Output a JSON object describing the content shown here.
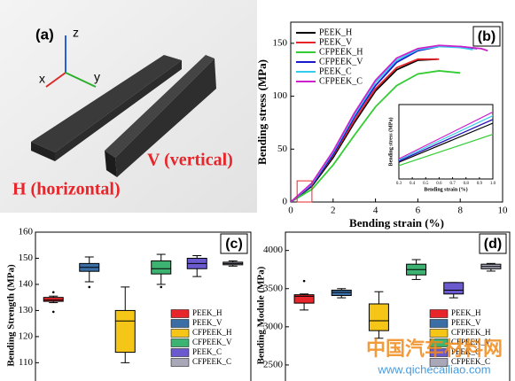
{
  "panel_a": {
    "label": "(a)",
    "axis_z": "z",
    "axis_x": "x",
    "axis_y": "y",
    "vertical_label": "V (vertical)",
    "horizontal_label": "H (horizontal)"
  },
  "chart_data": [
    {
      "type": "line",
      "panel_label": "(b)",
      "x_label": "Bending strain (%)",
      "y_label": "Bending stress (MPa)",
      "xlim": [
        0,
        10
      ],
      "xticks": [
        0,
        2,
        4,
        6,
        8,
        10
      ],
      "ylim": [
        0,
        170
      ],
      "yticks": [
        0,
        50,
        100,
        150
      ],
      "legend": "upper left",
      "series": [
        {
          "name": "PEEK_H",
          "color": "#000000",
          "x": [
            0,
            1,
            2,
            3,
            4,
            5,
            6,
            6.9
          ],
          "values": [
            0,
            15,
            42,
            75,
            105,
            125,
            134,
            135
          ]
        },
        {
          "name": "PEEK_V",
          "color": "#e8252a",
          "x": [
            0,
            1,
            2,
            3,
            4,
            5,
            6,
            7
          ],
          "values": [
            0,
            16,
            44,
            77,
            107,
            127,
            135,
            135
          ]
        },
        {
          "name": "CFPEEK_H",
          "color": "#33cc33",
          "x": [
            0,
            1,
            2,
            3,
            4,
            5,
            6,
            7,
            8
          ],
          "values": [
            0,
            12,
            35,
            63,
            90,
            110,
            121,
            124,
            122
          ]
        },
        {
          "name": "CFPEEK_V",
          "color": "#1a1acc",
          "x": [
            0,
            1,
            2,
            3,
            4,
            5,
            6,
            7,
            8,
            8.8
          ],
          "values": [
            0,
            16,
            45,
            80,
            110,
            132,
            143,
            147,
            147,
            145
          ]
        },
        {
          "name": "PEEK_C",
          "color": "#33ccee",
          "x": [
            0,
            1,
            2,
            3,
            4,
            5,
            6,
            7,
            8,
            8.6
          ],
          "values": [
            0,
            17,
            47,
            82,
            113,
            134,
            144,
            147,
            146,
            144
          ]
        },
        {
          "name": "CFPEEK_C",
          "color": "#cc22cc",
          "x": [
            0,
            1,
            2,
            3,
            4,
            5,
            6,
            7,
            8,
            9,
            9.3
          ],
          "values": [
            0,
            18,
            48,
            84,
            115,
            136,
            145,
            148,
            147,
            145,
            143
          ]
        }
      ],
      "inset": {
        "x_label": "Bending strain (%)",
        "y_label": "Bending stress (MPa)",
        "xlim": [
          0.3,
          1.0
        ],
        "xticks": [
          0.3,
          0.4,
          0.5,
          0.6,
          0.7,
          0.8,
          0.9,
          {
            "value": 1,
            "label": "1.0"
          }
        ],
        "ylim": [
          0,
          20
        ]
      }
    },
    {
      "type": "box",
      "panel_label": "(c)",
      "y_label": "Bending Strength (MPa)",
      "ylim": [
        103,
        160
      ],
      "yticks": [
        110,
        120,
        130,
        140,
        150,
        160
      ],
      "legend": "lower right",
      "series": [
        {
          "name": "PEEK_H",
          "color": "#e8252a",
          "min": 133,
          "q1": 133.5,
          "median": 134,
          "q3": 135,
          "max": 135.5,
          "outliers": [
            137,
            129.5
          ]
        },
        {
          "name": "PEEK_V",
          "color": "#3a6ea5",
          "min": 141,
          "q1": 145,
          "median": 146.5,
          "q3": 148,
          "max": 150.5,
          "outliers": [
            139
          ]
        },
        {
          "name": "CFPEEK_H",
          "color": "#f5c518",
          "min": 110,
          "q1": 114,
          "median": 126,
          "q3": 130,
          "max": 139,
          "outliers": []
        },
        {
          "name": "CFPEEK_V",
          "color": "#3cb371",
          "min": 140,
          "q1": 144,
          "median": 146,
          "q3": 149,
          "max": 151.5,
          "outliers": [
            139
          ]
        },
        {
          "name": "PEEK_C",
          "color": "#6a5acd",
          "min": 143,
          "q1": 146,
          "median": 148,
          "q3": 150,
          "max": 151,
          "outliers": []
        },
        {
          "name": "CFPEEK_C",
          "color": "#a8a8b8",
          "min": 147,
          "q1": 147.5,
          "median": 148,
          "q3": 148.5,
          "max": 149,
          "outliers": []
        }
      ]
    },
    {
      "type": "box",
      "panel_label": "(d)",
      "y_label": "Bending Module (MPa)",
      "ylim": [
        2290,
        4240
      ],
      "yticks": [
        2500,
        3000,
        3500,
        4000
      ],
      "legend": "lower right",
      "series": [
        {
          "name": "PEEK_H",
          "color": "#e8252a",
          "min": 3220,
          "q1": 3310,
          "median": 3400,
          "q3": 3420,
          "max": 3430,
          "outliers": [
            3600
          ]
        },
        {
          "name": "PEEK_V",
          "color": "#3a6ea5",
          "min": 3380,
          "q1": 3410,
          "median": 3450,
          "q3": 3480,
          "max": 3500,
          "outliers": []
        },
        {
          "name": "CFPEEK_H",
          "color": "#f5c518",
          "min": 2850,
          "q1": 2950,
          "median": 3080,
          "q3": 3300,
          "max": 3460,
          "outliers": []
        },
        {
          "name": "CFPEEK_V",
          "color": "#3cb371",
          "min": 3620,
          "q1": 3680,
          "median": 3750,
          "q3": 3820,
          "max": 3880,
          "outliers": []
        },
        {
          "name": "PEEK_C",
          "color": "#6a5acd",
          "min": 3380,
          "q1": 3430,
          "median": 3480,
          "q3": 3580,
          "max": 3580,
          "outliers": []
        },
        {
          "name": "CFPEEK_C",
          "color": "#a8a8b8",
          "min": 3730,
          "q1": 3760,
          "median": 3790,
          "q3": 3820,
          "max": 3830,
          "outliers": []
        }
      ]
    }
  ],
  "watermark": {
    "text": "中国汽车材料网",
    "url": "www.qichecailiao.com"
  }
}
